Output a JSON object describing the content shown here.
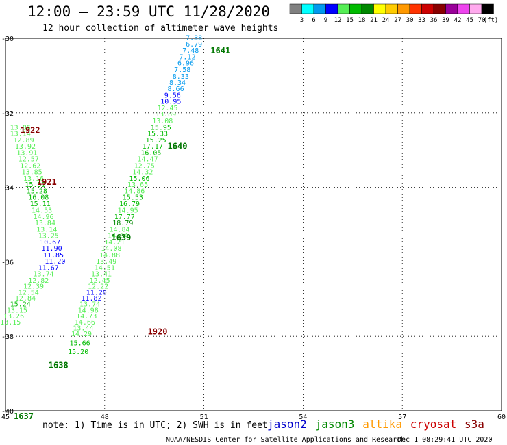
{
  "chart_data": {
    "type": "scatter",
    "title": "12:00 – 23:59 UTC 11/28/2020",
    "subtitle": "12 hour collection of altimeter wave heights",
    "xlim": [
      45,
      60
    ],
    "ylim": [
      -40,
      -30
    ],
    "x_ticks": [
      "45",
      "48",
      "51",
      "54",
      "57",
      "60"
    ],
    "y_ticks": [
      "-30",
      "-32",
      "-34",
      "-36",
      "-38",
      "-40"
    ],
    "grid": true,
    "color_scale": {
      "unit": "(ft)",
      "labels": [
        "3",
        "6",
        "9",
        "12",
        "15",
        "18",
        "21",
        "24",
        "27",
        "30",
        "33",
        "36",
        "39",
        "42",
        "45",
        "70"
      ],
      "colors": [
        "#808080",
        "#00ffff",
        "#0099ee",
        "#0000ff",
        "#55ee55",
        "#00bb00",
        "#008800",
        "#ffff00",
        "#ffcc00",
        "#ff9900",
        "#ff3300",
        "#cc0000",
        "#880000",
        "#990099",
        "#ee44ee",
        "#ffaaee",
        "#000000"
      ]
    },
    "points": [
      {
        "x": 50.7,
        "y": -30.05,
        "v": "7.38"
      },
      {
        "x": 50.7,
        "y": -30.22,
        "v": "6.79"
      },
      {
        "x": 50.6,
        "y": -30.39,
        "v": "7.48"
      },
      {
        "x": 50.5,
        "y": -30.56,
        "v": "7.12"
      },
      {
        "x": 50.45,
        "y": -30.73,
        "v": "6.96"
      },
      {
        "x": 50.35,
        "y": -30.9,
        "v": "7.58"
      },
      {
        "x": 50.3,
        "y": -31.08,
        "v": "8.33"
      },
      {
        "x": 50.2,
        "y": -31.25,
        "v": "8.34"
      },
      {
        "x": 50.15,
        "y": -31.42,
        "v": "8.66"
      },
      {
        "x": 50.05,
        "y": -31.59,
        "v": "9.56"
      },
      {
        "x": 50.0,
        "y": -31.76,
        "v": "10.95"
      },
      {
        "x": 49.9,
        "y": -31.93,
        "v": "12.45"
      },
      {
        "x": 49.85,
        "y": -32.1,
        "v": "13.89"
      },
      {
        "x": 49.75,
        "y": -32.28,
        "v": "13.08"
      },
      {
        "x": 49.7,
        "y": -32.45,
        "v": "15.95"
      },
      {
        "x": 49.6,
        "y": -32.62,
        "v": "15.33"
      },
      {
        "x": 49.55,
        "y": -32.79,
        "v": "15.25"
      },
      {
        "x": 49.45,
        "y": -32.96,
        "v": "17.17"
      },
      {
        "x": 49.4,
        "y": -33.13,
        "v": "16.05"
      },
      {
        "x": 49.3,
        "y": -33.3,
        "v": "14.47"
      },
      {
        "x": 49.2,
        "y": -33.48,
        "v": "12.75"
      },
      {
        "x": 49.15,
        "y": -33.65,
        "v": "14.32"
      },
      {
        "x": 49.05,
        "y": -33.82,
        "v": "15.06"
      },
      {
        "x": 49.0,
        "y": -33.99,
        "v": "13.65"
      },
      {
        "x": 48.9,
        "y": -34.16,
        "v": "14.86"
      },
      {
        "x": 48.85,
        "y": -34.33,
        "v": "15.53"
      },
      {
        "x": 48.75,
        "y": -34.5,
        "v": "16.79"
      },
      {
        "x": 48.7,
        "y": -34.68,
        "v": "14.95"
      },
      {
        "x": 48.6,
        "y": -34.85,
        "v": "17.77"
      },
      {
        "x": 48.55,
        "y": -35.02,
        "v": "18.79"
      },
      {
        "x": 48.45,
        "y": -35.19,
        "v": "14.84"
      },
      {
        "x": 48.4,
        "y": -35.36,
        "v": "14.04"
      },
      {
        "x": 48.3,
        "y": -35.53,
        "v": "14.21"
      },
      {
        "x": 48.2,
        "y": -35.7,
        "v": "14.08"
      },
      {
        "x": 48.15,
        "y": -35.88,
        "v": "14.88"
      },
      {
        "x": 48.05,
        "y": -36.05,
        "v": "13.49"
      },
      {
        "x": 48.0,
        "y": -36.22,
        "v": "14.51"
      },
      {
        "x": 47.9,
        "y": -36.39,
        "v": "13.41"
      },
      {
        "x": 47.85,
        "y": -36.56,
        "v": "12.45"
      },
      {
        "x": 47.8,
        "y": -36.72,
        "v": "12.22"
      },
      {
        "x": 47.75,
        "y": -36.88,
        "v": "11.20"
      },
      {
        "x": 47.6,
        "y": -37.04,
        "v": "11.82"
      },
      {
        "x": 47.55,
        "y": -37.2,
        "v": "13.74"
      },
      {
        "x": 47.5,
        "y": -37.36,
        "v": "14.98"
      },
      {
        "x": 47.45,
        "y": -37.52,
        "v": "14.73"
      },
      {
        "x": 47.4,
        "y": -37.68,
        "v": "14.66"
      },
      {
        "x": 47.35,
        "y": -37.84,
        "v": "13.44"
      },
      {
        "x": 47.3,
        "y": -38.0,
        "v": "14.29"
      },
      {
        "x": 47.25,
        "y": -38.24,
        "v": "15.66"
      },
      {
        "x": 47.2,
        "y": -38.47,
        "v": "15.20"
      },
      {
        "x": 45.45,
        "y": -32.45,
        "v": "13.86"
      },
      {
        "x": 45.45,
        "y": -32.62,
        "v": "13.14"
      },
      {
        "x": 45.55,
        "y": -32.79,
        "v": "12.89"
      },
      {
        "x": 45.6,
        "y": -32.96,
        "v": "13.92"
      },
      {
        "x": 45.65,
        "y": -33.13,
        "v": "13.91"
      },
      {
        "x": 45.7,
        "y": -33.3,
        "v": "12.57"
      },
      {
        "x": 45.75,
        "y": -33.48,
        "v": "12.62"
      },
      {
        "x": 45.8,
        "y": -33.65,
        "v": "13.85"
      },
      {
        "x": 45.85,
        "y": -33.82,
        "v": "13.16"
      },
      {
        "x": 45.9,
        "y": -33.99,
        "v": "15.52"
      },
      {
        "x": 45.95,
        "y": -34.16,
        "v": "15.28"
      },
      {
        "x": 46.0,
        "y": -34.33,
        "v": "16.08"
      },
      {
        "x": 46.05,
        "y": -34.5,
        "v": "15.11"
      },
      {
        "x": 46.1,
        "y": -34.68,
        "v": "14.53"
      },
      {
        "x": 46.15,
        "y": -34.85,
        "v": "14.96"
      },
      {
        "x": 46.2,
        "y": -35.02,
        "v": "13.84"
      },
      {
        "x": 46.25,
        "y": -35.19,
        "v": "13.14"
      },
      {
        "x": 46.3,
        "y": -35.36,
        "v": "13.25"
      },
      {
        "x": 46.35,
        "y": -35.53,
        "v": "10.67"
      },
      {
        "x": 46.4,
        "y": -35.7,
        "v": "11.90"
      },
      {
        "x": 46.45,
        "y": -35.88,
        "v": "11.85"
      },
      {
        "x": 46.5,
        "y": -36.05,
        "v": "11.20"
      },
      {
        "x": 46.3,
        "y": -36.22,
        "v": "11.67"
      },
      {
        "x": 46.15,
        "y": -36.39,
        "v": "13.74"
      },
      {
        "x": 46.0,
        "y": -36.56,
        "v": "12.82"
      },
      {
        "x": 45.85,
        "y": -36.72,
        "v": "12.39"
      },
      {
        "x": 45.7,
        "y": -36.88,
        "v": "12.54"
      },
      {
        "x": 45.6,
        "y": -37.04,
        "v": "12.84"
      },
      {
        "x": 45.45,
        "y": -37.2,
        "v": "15.24"
      },
      {
        "x": 45.35,
        "y": -37.36,
        "v": "13.15"
      },
      {
        "x": 45.25,
        "y": -37.52,
        "v": "13.26"
      },
      {
        "x": 45.15,
        "y": -37.68,
        "v": "13.15"
      }
    ],
    "pass_labels": [
      {
        "x": 51.5,
        "y": -30.4,
        "text": "1641"
      },
      {
        "x": 50.2,
        "y": -32.97,
        "text": "1640"
      },
      {
        "x": 48.5,
        "y": -35.42,
        "text": "1639"
      },
      {
        "x": 46.25,
        "y": -33.93,
        "text": "1921"
      },
      {
        "x": 45.75,
        "y": -32.55,
        "text": "1922"
      },
      {
        "x": 49.6,
        "y": -37.95,
        "text": "1920"
      },
      {
        "x": 46.6,
        "y": -38.85,
        "text": "1638"
      },
      {
        "x": 45.55,
        "y": -40.22,
        "text": "1637"
      }
    ]
  },
  "footer": {
    "note": "note: 1) Time is in UTC; 2) SWH is in feet",
    "satellites": [
      {
        "name": "jason2",
        "color": "#0000cc"
      },
      {
        "name": "jason3",
        "color": "#008800"
      },
      {
        "name": "altika",
        "color": "#ff9900"
      },
      {
        "name": "cryosat",
        "color": "#cc0000"
      },
      {
        "name": "s3a",
        "color": "#880000"
      }
    ],
    "credit": "NOAA/NESDIS Center for Satellite Applications and Research",
    "timestamp": "Dec  1 08:29:41 UTC 2020"
  }
}
